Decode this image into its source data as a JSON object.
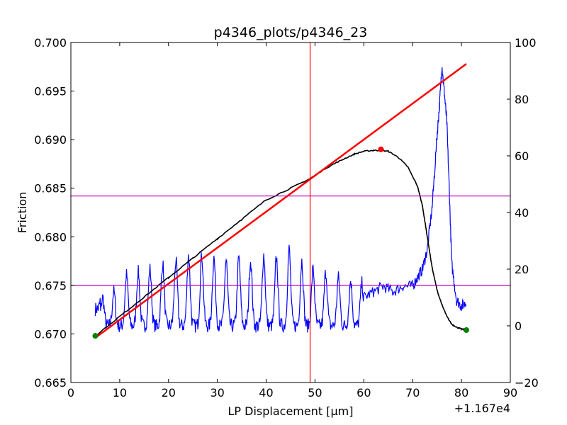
{
  "chart_data": {
    "type": "line",
    "title": "p4346_plots/p4346_23",
    "xlabel": "LP Displacement [μm]",
    "ylabel": "Friction",
    "x_offset_label": "+1.167e4",
    "xlim": [
      0,
      90
    ],
    "ylim": [
      0.665,
      0.7
    ],
    "y2lim": [
      -20,
      100
    ],
    "xticks": [
      "0",
      "10",
      "20",
      "30",
      "40",
      "50",
      "60",
      "70",
      "80",
      "90"
    ],
    "yticks": [
      "0.665",
      "0.670",
      "0.675",
      "0.680",
      "0.685",
      "0.690",
      "0.695",
      "0.700"
    ],
    "y2ticks": [
      "−20",
      "0",
      "20",
      "40",
      "60",
      "80",
      "100"
    ],
    "grid": false,
    "colors": {
      "friction": "#000000",
      "fit": "#ff0000",
      "secondary": "#0000ff",
      "hlines": "#bf00bf",
      "vline": "#ff0000",
      "endpoints": "#008000",
      "peak": "#ff0000"
    },
    "series": [
      {
        "axis": "left",
        "color": "#000000",
        "x": [
          5,
          10,
          15,
          20,
          25,
          30,
          35,
          40,
          45,
          49,
          52,
          55,
          58,
          60,
          62,
          63.5,
          65,
          67,
          69,
          71,
          72,
          73,
          74,
          75,
          76,
          77,
          78,
          79,
          80,
          81
        ],
        "y": [
          0.6698,
          0.6718,
          0.6738,
          0.6758,
          0.6778,
          0.6798,
          0.6818,
          0.6838,
          0.685,
          0.686,
          0.687,
          0.6878,
          0.6885,
          0.6888,
          0.6889,
          0.6889,
          0.6888,
          0.6882,
          0.6872,
          0.6852,
          0.6832,
          0.68,
          0.6768,
          0.6745,
          0.673,
          0.6718,
          0.671,
          0.6707,
          0.6705,
          0.6704
        ]
      },
      {
        "axis": "left",
        "color": "#ff0000",
        "x": [
          5,
          81
        ],
        "y": [
          0.6696,
          0.6978
        ]
      },
      {
        "axis": "right",
        "color": "#0000ff",
        "peaks_x": [
          6.5,
          8.8,
          11.4,
          13.8,
          16.2,
          18.8,
          21.5,
          24.1,
          26.8,
          29.3,
          31.8,
          34.4,
          36.8,
          39.5,
          42.1,
          44.7,
          47.3,
          49.6,
          52.2,
          54.8,
          57.3,
          59.6
        ],
        "peaks_y": [
          10,
          12,
          18,
          19,
          20,
          22,
          23,
          25,
          25,
          24,
          23,
          24,
          23,
          25,
          24,
          27,
          23,
          20,
          19,
          17,
          16,
          15
        ],
        "baseline": 0,
        "tail_x": [
          60,
          62,
          64,
          66,
          68,
          70,
          71,
          72,
          73,
          74,
          75,
          75.5,
          76,
          76.5,
          77,
          77.5,
          78,
          79,
          80,
          81
        ],
        "tail_y": [
          10,
          12,
          14,
          12,
          14,
          14,
          17,
          20,
          27,
          42,
          67,
          78,
          92,
          82,
          72,
          48,
          22,
          9,
          7,
          8
        ]
      }
    ],
    "hlines_left": [
      0.6842,
      0.675
    ],
    "vline_x": 49,
    "markers": [
      {
        "x": 5,
        "y": 0.6698,
        "color": "#008000"
      },
      {
        "x": 81,
        "y": 0.6704,
        "color": "#008000"
      },
      {
        "x": 63.5,
        "y": 0.689,
        "color": "#ff0000"
      }
    ]
  }
}
